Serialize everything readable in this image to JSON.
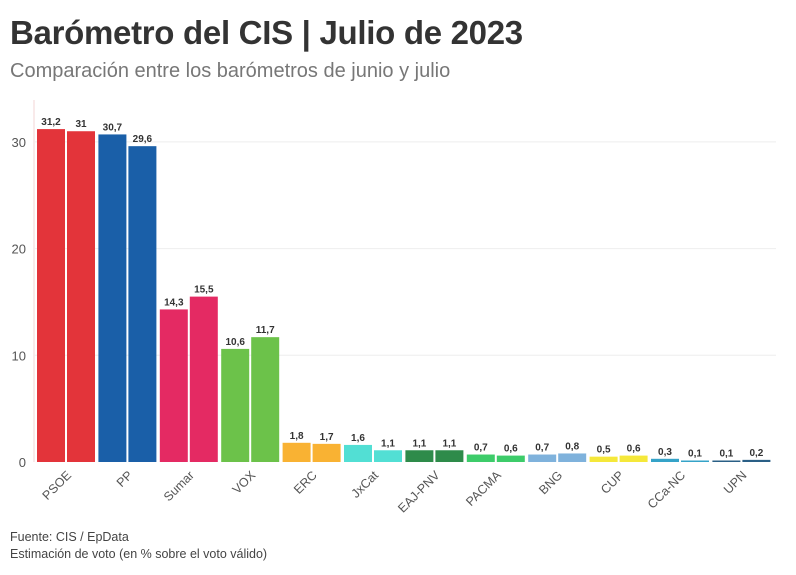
{
  "chart_data": {
    "type": "bar",
    "title": "Barómetro del CIS | Julio de 2023",
    "subtitle": "Comparación entre los barómetros de junio y julio",
    "categories": [
      "PSOE",
      "PP",
      "Sumar",
      "VOX",
      "ERC",
      "JxCat",
      "EAJ-PNV",
      "PACMA",
      "BNG",
      "CUP",
      "CCa-NC",
      "UPN"
    ],
    "series": [
      {
        "values": [
          31.2,
          30.7,
          14.3,
          10.6,
          1.8,
          1.6,
          1.1,
          0.7,
          0.7,
          0.5,
          0.3,
          0.1
        ],
        "labels": [
          "31,2",
          "30,7",
          "14,3",
          "10,6",
          "1,8",
          "1,6",
          "1,1",
          "0,7",
          "0,7",
          "0,5",
          "0,3",
          "0,1"
        ]
      },
      {
        "values": [
          31,
          29.6,
          15.5,
          11.7,
          1.7,
          1.1,
          1.1,
          0.6,
          0.8,
          0.6,
          0.1,
          0.2
        ],
        "labels": [
          "31",
          "29,6",
          "15,5",
          "11,7",
          "1,7",
          "1,1",
          "1,1",
          "0,6",
          "0,8",
          "0,6",
          "0,1",
          "0,2"
        ]
      }
    ],
    "colors": [
      "#e3343a",
      "#1a5fa8",
      "#e42a63",
      "#6cc24a",
      "#f9b233",
      "#52dfd4",
      "#2e8b4a",
      "#3dcc6a",
      "#7fb2dc",
      "#f5e83a",
      "#35a3c8",
      "#2a5f86"
    ],
    "yticks": [
      "0",
      "10",
      "20",
      "30"
    ],
    "ylim": [
      0,
      33
    ],
    "grid": true,
    "xlabel": "",
    "ylabel": ""
  },
  "footer": {
    "source": "Fuente: CIS / EpData",
    "note": "Estimación de voto (en % sobre el voto válido)"
  }
}
